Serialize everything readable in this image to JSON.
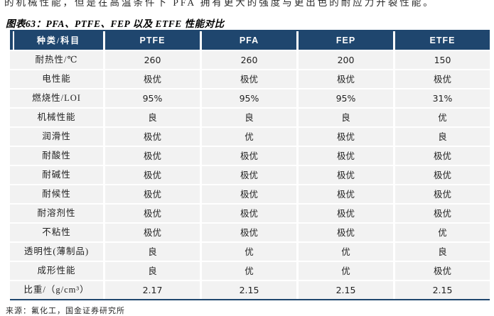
{
  "page": {
    "intro_text_clipped": "的机械性能，但是在高温条件下 PFA 拥有更大的强度与更出色的耐应力开裂性能。",
    "source_note": "来源：氟化工，国金证券研究所"
  },
  "colors": {
    "header_bg": "#1f466e",
    "row_bg": "#f2f2f2",
    "border_line": "#1f466e",
    "header_text": "#ffffff"
  },
  "chart_data": {
    "type": "table",
    "title": "图表63：PFA、PTFE、FEP 以及 ETFE 性能对比",
    "columns": [
      "种类/科目",
      "PTFE",
      "PFA",
      "FEP",
      "ETFE"
    ],
    "rows": [
      {
        "label": "耐热性/℃",
        "values": [
          "260",
          "260",
          "200",
          "150"
        ]
      },
      {
        "label": "电性能",
        "values": [
          "极优",
          "极优",
          "极优",
          "极优"
        ]
      },
      {
        "label": "燃烧性/LOI",
        "values": [
          "95%",
          "95%",
          "95%",
          "31%"
        ]
      },
      {
        "label": "机械性能",
        "values": [
          "良",
          "良",
          "良",
          "优"
        ]
      },
      {
        "label": "润滑性",
        "values": [
          "极优",
          "优",
          "极优",
          "良"
        ]
      },
      {
        "label": "耐酸性",
        "values": [
          "极优",
          "极优",
          "极优",
          "极优"
        ]
      },
      {
        "label": "耐碱性",
        "values": [
          "极优",
          "极优",
          "极优",
          "极优"
        ]
      },
      {
        "label": "耐候性",
        "values": [
          "极优",
          "极优",
          "极优",
          "极优"
        ]
      },
      {
        "label": "耐溶剂性",
        "values": [
          "极优",
          "极优",
          "极优",
          "极优"
        ]
      },
      {
        "label": "不粘性",
        "values": [
          "极优",
          "极优",
          "极优",
          "优"
        ]
      },
      {
        "label": "透明性(薄制品)",
        "values": [
          "良",
          "优",
          "优",
          "良"
        ]
      },
      {
        "label": "成形性能",
        "values": [
          "良",
          "优",
          "优",
          "极优"
        ]
      },
      {
        "label": "比重/（g/cm³）",
        "values": [
          "2.17",
          "2.15",
          "2.15",
          "2.15"
        ]
      }
    ]
  }
}
